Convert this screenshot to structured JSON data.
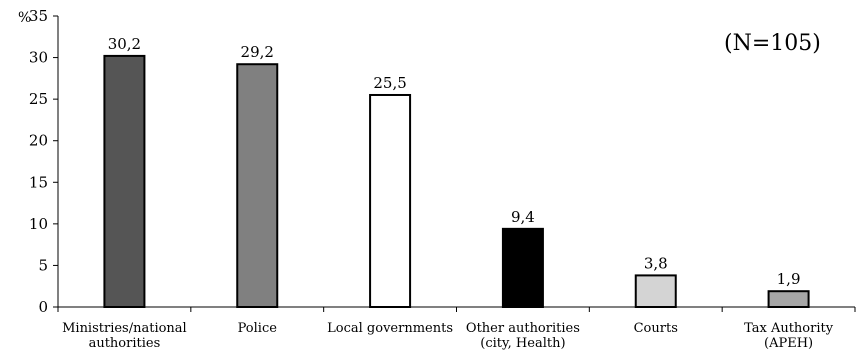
{
  "chart_data": {
    "type": "bar",
    "categories": [
      [
        "Ministries/national",
        "authorities"
      ],
      [
        "Police"
      ],
      [
        "Local governments"
      ],
      [
        "Other authorities",
        "(city, Health)"
      ],
      [
        "Courts"
      ],
      [
        "Tax Authority",
        "(APEH)"
      ]
    ],
    "values": [
      30.2,
      29.2,
      25.5,
      9.4,
      3.8,
      1.9
    ],
    "data_labels": [
      "30,2",
      "29,2",
      "25,5",
      "9,4",
      "3,8",
      "1,9"
    ],
    "bar_colors": [
      "#555555",
      "#808080",
      "#ffffff",
      "#000000",
      "#d4d4d4",
      "#a6a6a6"
    ],
    "ylim": [
      0,
      35
    ],
    "yticks": [
      0,
      5,
      10,
      15,
      20,
      25,
      30,
      35
    ],
    "ylabel": "%",
    "annotation": "(N=105)",
    "grid": false,
    "legend": "none"
  }
}
